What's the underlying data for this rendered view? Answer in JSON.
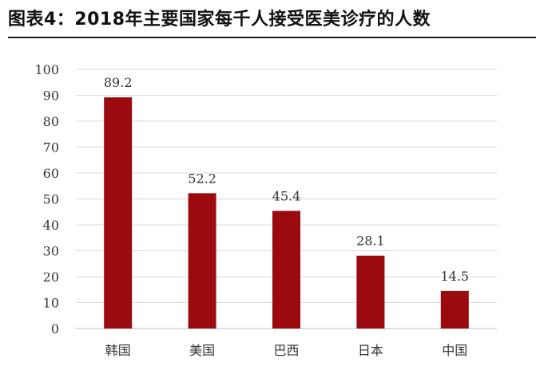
{
  "title": "图表4：2018年主要国家每千人接受医美诊疗的人数",
  "colors": {
    "bar": "#9b0a0f",
    "grid": "#d9d9d9",
    "text": "#333333"
  },
  "chart_data": {
    "type": "bar",
    "categories": [
      "韩国",
      "美国",
      "巴西",
      "日本",
      "中国"
    ],
    "values": [
      89.2,
      52.2,
      45.4,
      28.1,
      14.5
    ],
    "value_labels": [
      "89.2",
      "52.2",
      "45.4",
      "28.1",
      "14.5"
    ],
    "ylim": [
      0,
      100
    ],
    "yticks": [
      0,
      10,
      20,
      30,
      40,
      50,
      60,
      70,
      80,
      90,
      100
    ],
    "grid": true,
    "legend": "none",
    "xlabel": "",
    "ylabel": ""
  }
}
